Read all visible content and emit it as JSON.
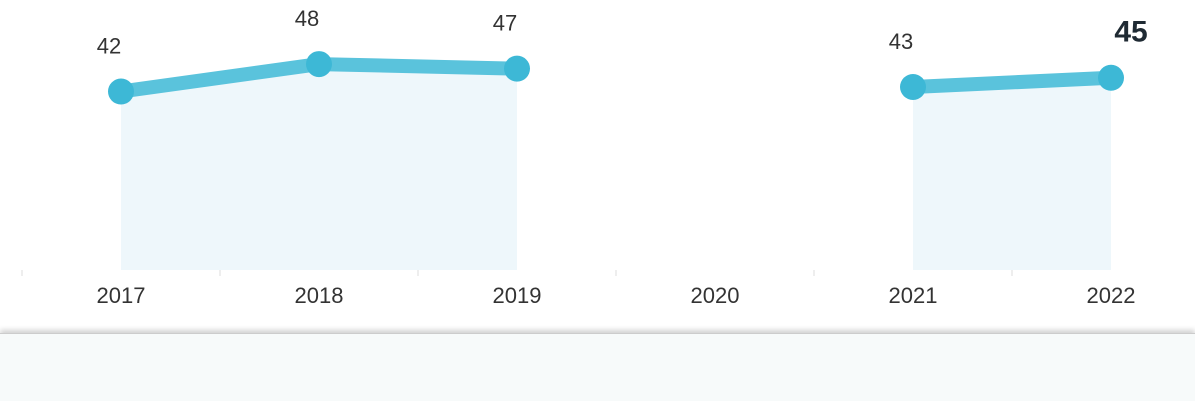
{
  "chart_data": {
    "type": "line",
    "categories": [
      "2017",
      "2018",
      "2019",
      "2020",
      "2021",
      "2022"
    ],
    "values": [
      42,
      48,
      47,
      null,
      43,
      45
    ],
    "color": "#5ac3dc",
    "ylim": [
      3,
      62
    ]
  }
}
